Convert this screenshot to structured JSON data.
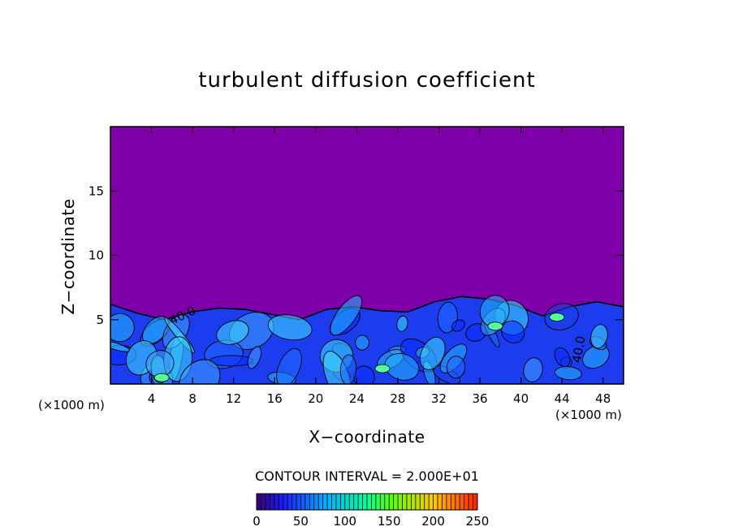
{
  "chart_data": {
    "type": "heatmap",
    "title": "turbulent diffusion coefficient",
    "xlabel": "X−coordinate",
    "ylabel": "Z−coordinate",
    "x_unit": "(×1000 m)",
    "xlim": [
      0,
      50
    ],
    "ylim": [
      0,
      20
    ],
    "x_ticks": [
      4,
      8,
      12,
      16,
      20,
      24,
      28,
      32,
      36,
      40,
      44,
      48
    ],
    "y_ticks": [
      5,
      10,
      15
    ],
    "contour_interval_label": "CONTOUR INTERVAL = 2.000E+01",
    "contour_labels": [
      "40.0",
      "40.0"
    ],
    "colorbar": {
      "min": 0,
      "max": 250,
      "ticks": [
        0,
        50,
        100,
        150,
        200,
        250
      ],
      "colors": [
        "#7a00a6",
        "#1a1aff",
        "#00c8ff",
        "#00ff64",
        "#ffff00",
        "#ff0000"
      ]
    },
    "background_color": "#7f00aa",
    "turbulent_layer_top": [
      6.2,
      5.5,
      5.0,
      5.6,
      5.9,
      5.8,
      5.4,
      5.0,
      5.8,
      6.0,
      5.7,
      5.6,
      6.4,
      6.8,
      6.6,
      6.1,
      5.3,
      6.0,
      6.4,
      6.0
    ]
  }
}
